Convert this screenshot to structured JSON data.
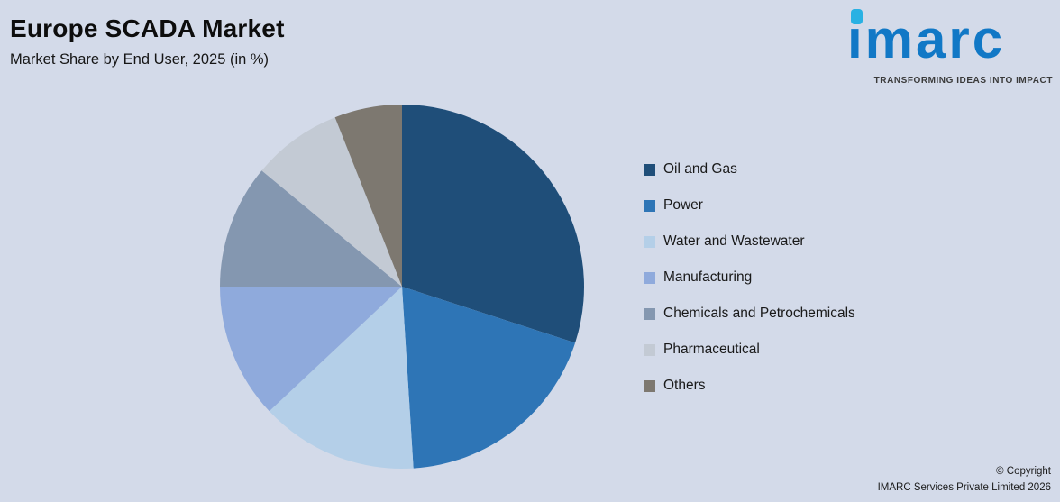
{
  "header": {
    "title": "Europe SCADA Market",
    "subtitle": "Market Share by End User, 2025 (in %)"
  },
  "logo": {
    "brand": "imarc",
    "tagline": "TRANSFORMING IDEAS INTO IMPACT",
    "brand_color": "#1178c6",
    "dot_color": "#29b1e3"
  },
  "footer": {
    "copyright_line1": "© Copyright",
    "copyright_line2": "IMARC Services Private Limited 2026"
  },
  "colors": {
    "background": "#d3dae9"
  },
  "chart_data": {
    "type": "pie",
    "title": "Europe SCADA Market",
    "subtitle": "Market Share by End User, 2025 (in %)",
    "legend_position": "right",
    "start_angle_deg": 0,
    "direction": "clockwise",
    "units": "%",
    "slices": [
      {
        "label": "Oil and Gas",
        "value": 30,
        "color": "#1f4e79"
      },
      {
        "label": "Power",
        "value": 19,
        "color": "#2e75b6"
      },
      {
        "label": "Water and Wastewater",
        "value": 14,
        "color": "#b4cfe8"
      },
      {
        "label": "Manufacturing",
        "value": 12,
        "color": "#8faadc"
      },
      {
        "label": "Chemicals and Petrochemicals",
        "value": 11,
        "color": "#8497b0"
      },
      {
        "label": "Pharmaceutical",
        "value": 8,
        "color": "#c3cad4"
      },
      {
        "label": "Others",
        "value": 6,
        "color": "#7d7870"
      }
    ]
  }
}
